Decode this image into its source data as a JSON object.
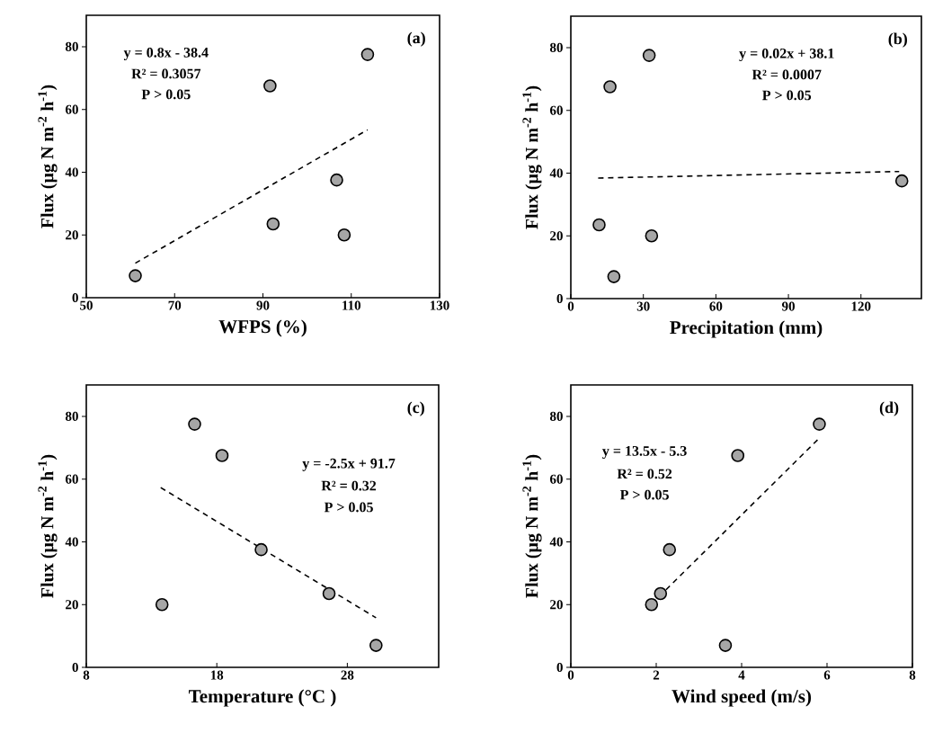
{
  "chart_data": [
    {
      "type": "scatter",
      "xlabel": "WFPS (%)",
      "ylabel": "Flux (µg N m$^{-2}$ h$^{-1}$)",
      "xlim": [
        50,
        130
      ],
      "xticks": [
        50,
        70,
        90,
        110,
        130
      ],
      "ylim": [
        0,
        90
      ],
      "yticks": [
        0,
        20,
        40,
        60,
        80
      ],
      "annotations": [
        "y = 0.8x - 38.4",
        "R² = 0.3057",
        "P > 0.05",
        "(a)"
      ],
      "series": [
        {
          "type": "scatter",
          "marker": "circle",
          "color": "#a6a6a6",
          "x": [
            61.1,
            91.6,
            92.3,
            106.7,
            108.4,
            113.7
          ],
          "values": [
            7,
            67.5,
            23.5,
            37.5,
            20,
            77.5
          ]
        },
        {
          "type": "line",
          "color": "#000000",
          "line_style": "dashed",
          "marker": "none",
          "x": [
            61.1,
            113.7
          ],
          "values": [
            11,
            53.5
          ]
        }
      ]
    },
    {
      "type": "scatter",
      "xlabel": "Precipitation (mm)",
      "ylabel": "Flux (µg N m$^{-2}$ h$^{-1}$)",
      "xlim": [
        0,
        145
      ],
      "xticks": [
        0,
        30,
        60,
        90,
        120
      ],
      "ylim": [
        0,
        90
      ],
      "yticks": [
        0,
        20,
        40,
        60,
        80
      ],
      "annotations": [
        "y = 0.02x + 38.1",
        "R² = 0.0007",
        "P > 0.05",
        "(b)"
      ],
      "series": [
        {
          "type": "scatter",
          "marker": "circle",
          "color": "#a6a6a6",
          "x": [
            32.4,
            16.2,
            136.9,
            11.7,
            33.4,
            17.8
          ],
          "values": [
            77.5,
            67.5,
            37.5,
            23.5,
            20,
            7
          ]
        },
        {
          "type": "line",
          "color": "#000000",
          "line_style": "dashed",
          "marker": "none",
          "x": [
            11.3,
            135.8
          ],
          "values": [
            38.4,
            40.5
          ]
        }
      ]
    },
    {
      "type": "scatter",
      "xlabel": "Temperature (°C )",
      "ylabel": "Flux (µg N m$^{-2}$ h$^{-1}$)",
      "xlim": [
        8,
        35
      ],
      "xticks": [
        8,
        18,
        28
      ],
      "ylim": [
        0,
        90
      ],
      "yticks": [
        0,
        20,
        40,
        60,
        80
      ],
      "annotations": [
        "y = -2.5x + 91.7",
        "R² = 0.32",
        "P > 0.05",
        "(c)"
      ],
      "series": [
        {
          "type": "scatter",
          "marker": "circle",
          "color": "#a6a6a6",
          "x": [
            16.3,
            18.4,
            21.4,
            26.6,
            13.8,
            30.2
          ],
          "values": [
            77.5,
            67.5,
            37.5,
            23.5,
            20,
            7
          ]
        },
        {
          "type": "line",
          "color": "#000000",
          "line_style": "dashed",
          "marker": "none",
          "x": [
            13.7,
            30.2
          ],
          "values": [
            57.3,
            15.8
          ]
        }
      ]
    },
    {
      "type": "scatter",
      "xlabel": "Wind speed (m/s)",
      "ylabel": "Flux (µg N m$^{-2}$ h$^{-1}$)",
      "xlim": [
        0,
        8
      ],
      "xticks": [
        0,
        2,
        4,
        6,
        8
      ],
      "ylim": [
        0,
        90
      ],
      "yticks": [
        0,
        20,
        40,
        60,
        80
      ],
      "annotations": [
        "y = 13.5x - 5.3",
        "R² = 0.52",
        "P > 0.05",
        "(d)"
      ],
      "series": [
        {
          "type": "scatter",
          "marker": "circle",
          "color": "#a6a6a6",
          "x": [
            5.82,
            3.91,
            2.31,
            2.1,
            1.89,
            3.62
          ],
          "values": [
            77.5,
            67.5,
            37.5,
            23.5,
            20,
            7
          ]
        },
        {
          "type": "line",
          "color": "#000000",
          "line_style": "dashed",
          "marker": "none",
          "x": [
            1.9,
            5.8
          ],
          "values": [
            20.3,
            72.8
          ]
        }
      ]
    }
  ]
}
